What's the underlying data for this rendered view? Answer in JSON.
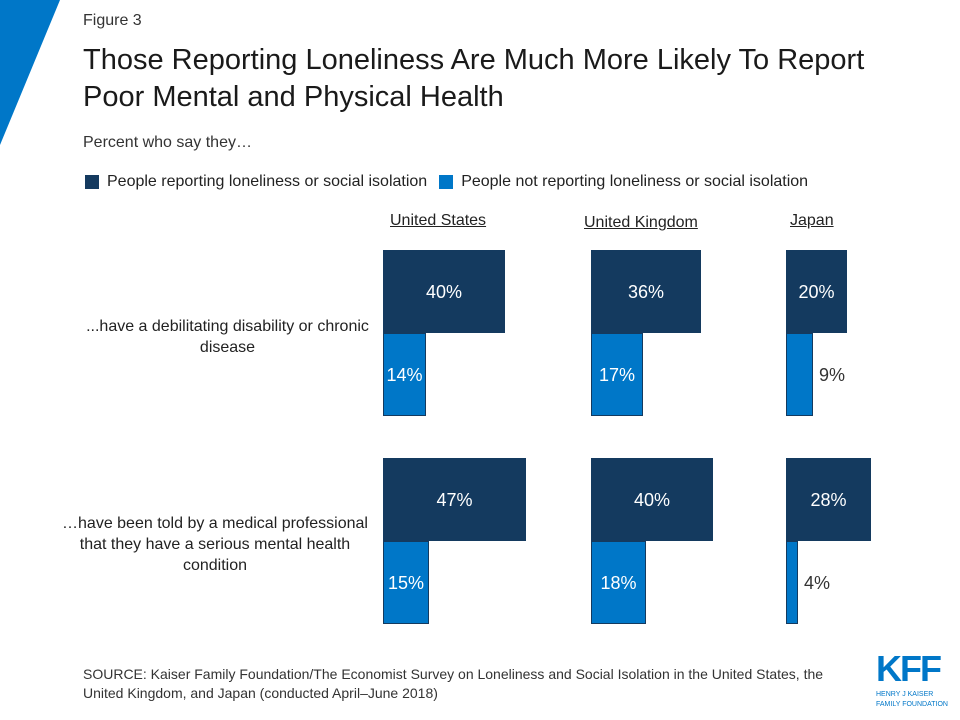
{
  "figure_label": "Figure 3",
  "colors": {
    "lonely": "#143a5f",
    "not_lonely": "#0077c8",
    "accent": "#0077c8"
  },
  "chart_data": {
    "type": "bar",
    "title": "Those Reporting Loneliness Are Much More Likely To Report Poor Mental and Physical Health",
    "subtitle": "Percent who say they…",
    "legend": [
      "People reporting loneliness or social isolation",
      "People not reporting loneliness or social isolation"
    ],
    "legend_placement": "top",
    "countries": [
      "United States",
      "United Kingdom",
      "Japan"
    ],
    "categories": [
      "...have a debilitating disability or chronic disease",
      "…have been told by a medical professional that they have a serious mental health condition"
    ],
    "series": [
      {
        "name": "People reporting loneliness or social isolation",
        "values": [
          [
            40,
            36,
            20
          ],
          [
            47,
            40,
            28
          ]
        ],
        "labels": [
          [
            "40%",
            "36%",
            "20%"
          ],
          [
            "47%",
            "40%",
            "28%"
          ]
        ]
      },
      {
        "name": "People not reporting loneliness or social isolation",
        "values": [
          [
            14,
            17,
            9
          ],
          [
            15,
            18,
            4
          ]
        ],
        "labels": [
          [
            "14%",
            "17%",
            "9%"
          ],
          [
            "15%",
            "18%",
            "4%"
          ]
        ]
      }
    ]
  },
  "source": "SOURCE: Kaiser Family Foundation/The Economist Survey on Loneliness and Social Isolation in the United States, the United Kingdom, and Japan (conducted April–June 2018)",
  "logo": {
    "main": "KFF",
    "line1": "HENRY J KAISER",
    "line2": "FAMILY FOUNDATION"
  }
}
